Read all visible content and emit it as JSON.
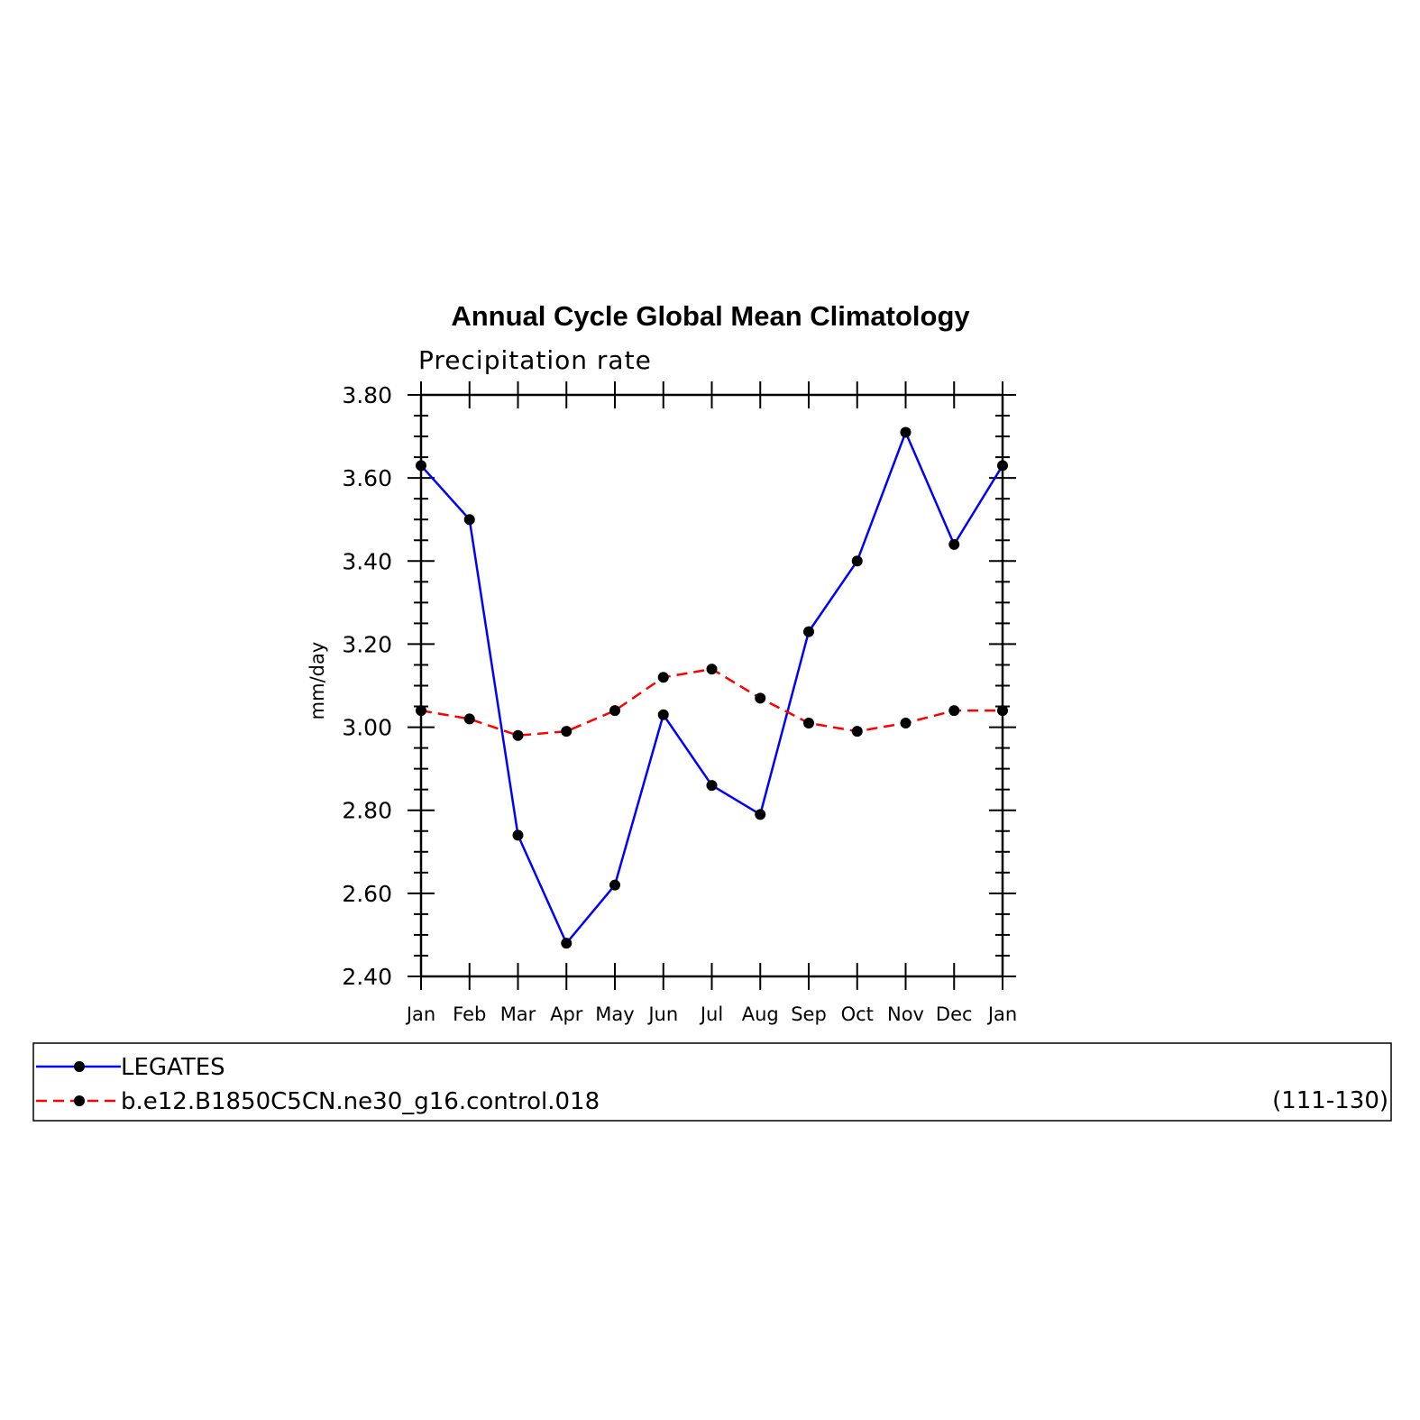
{
  "chart_data": {
    "type": "line",
    "title": "Annual Cycle Global Mean Climatology",
    "subtitle": "Precipitation rate",
    "xlabel": "",
    "ylabel": "mm/day",
    "categories": [
      "Jan",
      "Feb",
      "Mar",
      "Apr",
      "May",
      "Jun",
      "Jul",
      "Aug",
      "Sep",
      "Oct",
      "Nov",
      "Dec",
      "Jan"
    ],
    "yticks": [
      "2.40",
      "2.60",
      "2.80",
      "3.00",
      "3.20",
      "3.40",
      "3.60",
      "3.80"
    ],
    "ylim": [
      2.4,
      3.8
    ],
    "grid": false,
    "legend_position": "bottom",
    "series": [
      {
        "name": "LEGATES",
        "color": "#0000ff",
        "line_style": "solid",
        "marker": "filled-circle",
        "values": [
          3.63,
          3.5,
          2.74,
          2.48,
          2.62,
          3.03,
          2.86,
          2.79,
          3.23,
          3.4,
          3.71,
          3.44,
          3.63
        ]
      },
      {
        "name": "b.e12.B1850C5CN.ne30_g16.control.018",
        "color": "#ff0000",
        "line_style": "dashed",
        "marker": "filled-circle",
        "values": [
          3.04,
          3.02,
          2.98,
          2.99,
          3.04,
          3.12,
          3.14,
          3.07,
          3.01,
          2.99,
          3.01,
          3.04,
          3.04
        ]
      }
    ],
    "legend_note": "(111-130)"
  }
}
